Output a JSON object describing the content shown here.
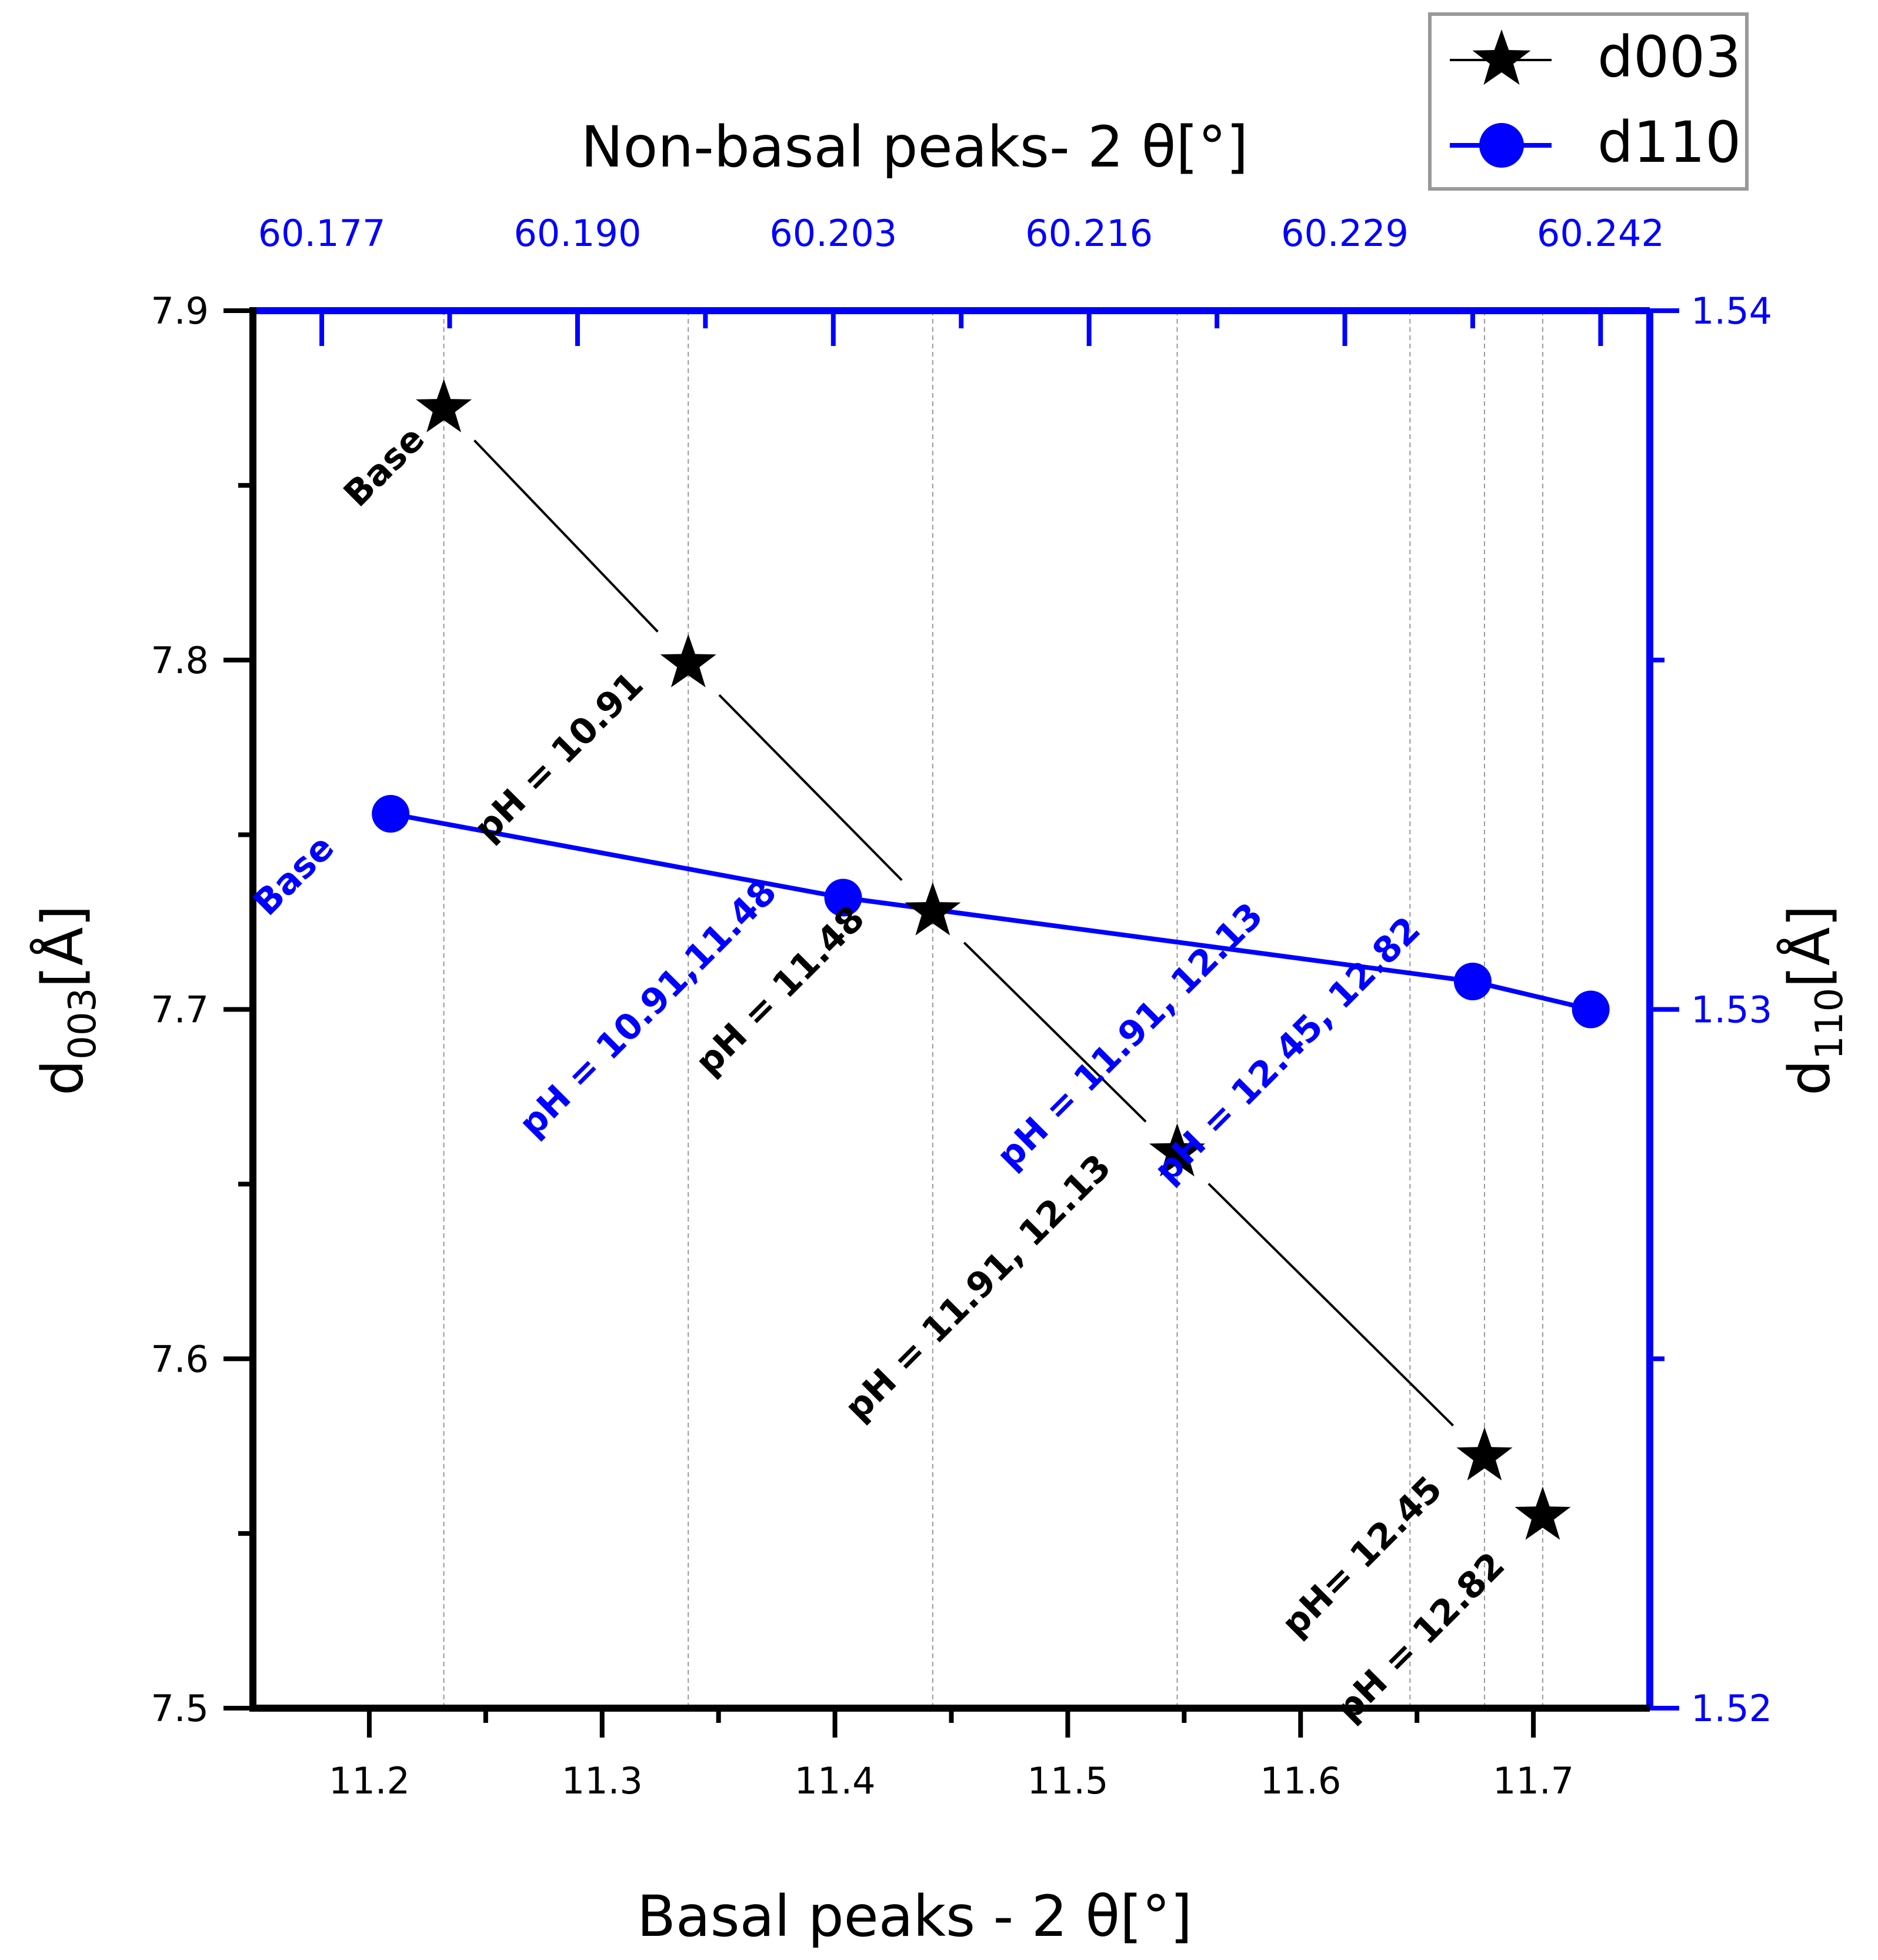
{
  "chart_data": {
    "type": "line",
    "top_axis": {
      "title": "Non-basal peaks- 2 θ[°]",
      "ticks": [
        60.177,
        60.19,
        60.203,
        60.216,
        60.229,
        60.242
      ],
      "tick_labels": [
        "60.177",
        "60.190",
        "60.203",
        "60.216",
        "60.229",
        "60.242"
      ],
      "range": [
        60.1735,
        60.2445
      ]
    },
    "bottom_axis": {
      "title_main": "Basal peaks - 2 θ[°]",
      "ticks": [
        11.2,
        11.3,
        11.4,
        11.5,
        11.6,
        11.7
      ],
      "tick_labels": [
        "11.2",
        "11.3",
        "11.4",
        "11.5",
        "11.6",
        "11.7"
      ],
      "range": [
        11.15,
        11.75
      ]
    },
    "left_axis": {
      "title_main": "d",
      "title_sub": "003",
      "title_unit": "[Å]",
      "ticks": [
        7.5,
        7.6,
        7.7,
        7.8,
        7.9
      ],
      "tick_labels": [
        "7.5",
        "7.6",
        "7.7",
        "7.8",
        "7.9"
      ],
      "range": [
        7.5,
        7.9
      ]
    },
    "right_axis": {
      "title_main": "d",
      "title_sub": "110",
      "title_unit": "[Å]",
      "ticks": [
        1.52,
        1.53,
        1.54
      ],
      "tick_labels": [
        "1.52",
        "1.53",
        "1.54"
      ],
      "range": [
        1.52,
        1.54
      ]
    },
    "series": [
      {
        "name": "d003",
        "color": "#000000",
        "marker": "star",
        "x": [
          11.232,
          11.337,
          11.442,
          11.547,
          11.679,
          11.704
        ],
        "y": [
          7.872,
          7.799,
          7.728,
          7.659,
          7.572,
          7.555
        ]
      },
      {
        "name": "d110",
        "color": "#0000ff",
        "marker": "circle",
        "x": [
          60.1805,
          60.2035,
          60.2355,
          60.2415
        ],
        "y": [
          1.5328,
          1.5316,
          1.5304,
          1.53
        ]
      }
    ],
    "grid_lines_x": [
      11.232,
      11.337,
      11.442,
      11.547,
      11.647,
      11.679,
      11.704
    ],
    "annotations_black": [
      {
        "text": "Base",
        "x": 11.21,
        "y": 7.853
      },
      {
        "text": "pH = 10.91",
        "x": 11.285,
        "y": 7.77
      },
      {
        "text": "pH = 11.48",
        "x": 11.38,
        "y": 7.703
      },
      {
        "text": "pH  = 11.91, 12.13",
        "x": 11.465,
        "y": 7.618
      },
      {
        "text": "pH= 12.45",
        "x": 11.63,
        "y": 7.541
      },
      {
        "text": "pH = 12.82",
        "x": 11.655,
        "y": 7.518
      }
    ],
    "annotations_blue": [
      {
        "text": "Base",
        "x": 60.176,
        "y": 1.5318
      },
      {
        "text": "pH = 10.91,11.48",
        "x": 60.194,
        "y": 1.5299
      },
      {
        "text": "pH  = 11.91, 12.13",
        "x": 60.2185,
        "y": 1.5295
      },
      {
        "text": "pH  = 12.45, 12.82",
        "x": 60.2265,
        "y": 1.5293
      }
    ]
  }
}
